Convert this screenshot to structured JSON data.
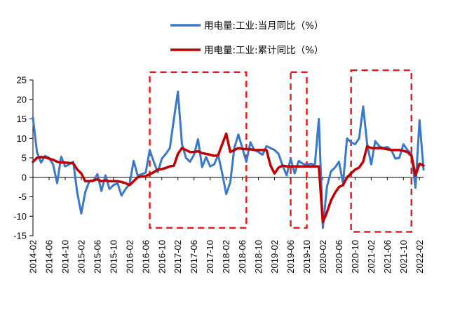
{
  "chart_data": {
    "type": "line",
    "title": "",
    "xlabel": "",
    "ylabel": "",
    "ylim": [
      -15,
      25
    ],
    "yticks": [
      -15,
      -10,
      -5,
      0,
      5,
      10,
      15,
      20,
      25
    ],
    "grid": false,
    "legend_position": "top-right",
    "x_tick_labels": [
      "2014-02",
      "2014-06",
      "2014-10",
      "2015-02",
      "2015-06",
      "2015-10",
      "2016-02",
      "2016-06",
      "2016-10",
      "2017-02",
      "2017-06",
      "2017-10",
      "2018-02",
      "2018-06",
      "2018-10",
      "2019-02",
      "2019-06",
      "2019-10",
      "2020-02",
      "2020-06",
      "2020-10",
      "2021-02",
      "2021-06",
      "2021-10",
      "2022-02"
    ],
    "x": [
      "2014-02",
      "2014-03",
      "2014-04",
      "2014-05",
      "2014-06",
      "2014-07",
      "2014-08",
      "2014-09",
      "2014-10",
      "2014-11",
      "2014-12",
      "2015-01",
      "2015-02",
      "2015-03",
      "2015-04",
      "2015-05",
      "2015-06",
      "2015-07",
      "2015-08",
      "2015-09",
      "2015-10",
      "2015-11",
      "2015-12",
      "2016-01",
      "2016-02",
      "2016-03",
      "2016-04",
      "2016-05",
      "2016-06",
      "2016-07",
      "2016-08",
      "2016-09",
      "2016-10",
      "2016-11",
      "2016-12",
      "2017-01",
      "2017-02",
      "2017-03",
      "2017-04",
      "2017-05",
      "2017-06",
      "2017-07",
      "2017-08",
      "2017-09",
      "2017-10",
      "2017-11",
      "2017-12",
      "2018-01",
      "2018-02",
      "2018-03",
      "2018-04",
      "2018-05",
      "2018-06",
      "2018-07",
      "2018-08",
      "2018-09",
      "2018-10",
      "2018-11",
      "2018-12",
      "2019-01",
      "2019-02",
      "2019-03",
      "2019-04",
      "2019-05",
      "2019-06",
      "2019-07",
      "2019-08",
      "2019-09",
      "2019-10",
      "2019-11",
      "2019-12",
      "2020-01",
      "2020-02",
      "2020-03",
      "2020-04",
      "2020-05",
      "2020-06",
      "2020-07",
      "2020-08",
      "2020-09",
      "2020-10",
      "2020-11",
      "2020-12",
      "2021-01",
      "2021-02",
      "2021-03",
      "2021-04",
      "2021-05",
      "2021-06",
      "2021-07",
      "2021-08",
      "2021-09",
      "2021-10",
      "2021-11",
      "2021-12",
      "2022-01",
      "2022-02",
      "2022-03"
    ],
    "series": [
      {
        "name": "用电量:工业:当月同比（%）",
        "color": "#3a78c9",
        "values": [
          15.3,
          6.5,
          3.8,
          5.5,
          5.0,
          3.3,
          -1.5,
          5.3,
          2.8,
          3.3,
          4.0,
          -4.0,
          -9.3,
          -3.8,
          -1.0,
          -1.0,
          0.8,
          -3.5,
          0.5,
          -3.0,
          -2.0,
          -1.5,
          -4.7,
          -3.0,
          -1.7,
          4.2,
          0.5,
          0.8,
          1.2,
          7.0,
          4.0,
          1.3,
          4.8,
          6.0,
          7.5,
          15.0,
          22.0,
          8.5,
          5.0,
          4.0,
          5.8,
          9.8,
          2.6,
          5.2,
          2.8,
          3.3,
          5.8,
          1.0,
          -4.3,
          -1.3,
          7.5,
          11.0,
          7.5,
          4.0,
          9.0,
          7.0,
          6.5,
          5.8,
          8.0,
          7.5,
          7.0,
          6.0,
          3.0,
          0.5,
          4.8,
          1.0,
          4.2,
          3.5,
          3.2,
          3.5,
          3.2,
          15.0,
          -13.0,
          -2.5,
          1.5,
          2.5,
          4.0,
          -1.5,
          10.0,
          9.0,
          8.5,
          10.0,
          18.2,
          8.5,
          3.3,
          9.3,
          8.0,
          7.5,
          7.8,
          7.0,
          4.8,
          5.0,
          8.5,
          7.0,
          6.0,
          -2.7,
          14.7,
          2.0
        ]
      },
      {
        "name": "用电量:工业:累计同比（%）",
        "color": "#c00000",
        "values": [
          4.0,
          5.0,
          5.2,
          5.1,
          4.8,
          4.5,
          4.0,
          3.8,
          3.8,
          3.7,
          3.6,
          2.0,
          1.0,
          -1.0,
          -1.0,
          -0.8,
          -0.5,
          -1.0,
          -0.8,
          -1.0,
          -1.0,
          -1.0,
          -1.2,
          -1.5,
          -2.0,
          -1.0,
          0.0,
          0.2,
          0.3,
          0.8,
          1.3,
          2.0,
          2.1,
          2.4,
          2.8,
          3.0,
          6.0,
          7.5,
          7.0,
          6.5,
          6.5,
          6.7,
          6.2,
          6.0,
          5.8,
          5.5,
          5.7,
          8.5,
          11.2,
          6.5,
          7.0,
          7.5,
          7.3,
          7.2,
          7.2,
          7.0,
          7.0,
          7.0,
          7.0,
          3.0,
          1.0,
          2.5,
          3.0,
          2.8,
          2.8,
          2.8,
          2.8,
          2.8,
          2.8,
          2.8,
          2.8,
          2.8,
          -11.5,
          -9.0,
          -6.0,
          -4.0,
          -2.5,
          -2.0,
          0.0,
          1.0,
          2.0,
          2.5,
          4.0,
          8.0,
          7.5,
          7.5,
          7.5,
          7.4,
          7.2,
          7.0,
          7.0,
          7.0,
          6.8,
          6.5,
          5.5,
          0.5,
          3.5,
          3.0
        ]
      }
    ],
    "annotations": [
      {
        "type": "dashed-box",
        "color": "#e02020",
        "from": "2016-07",
        "to": "2018-07",
        "ymin": -13,
        "ymax": 27
      },
      {
        "type": "dashed-box",
        "color": "#e02020",
        "from": "2019-06",
        "to": "2019-10",
        "ymin": -13,
        "ymax": 27
      },
      {
        "type": "dashed-box",
        "color": "#e02020",
        "from": "2020-09",
        "to": "2021-12",
        "ymin": -14,
        "ymax": 27.5
      }
    ]
  }
}
